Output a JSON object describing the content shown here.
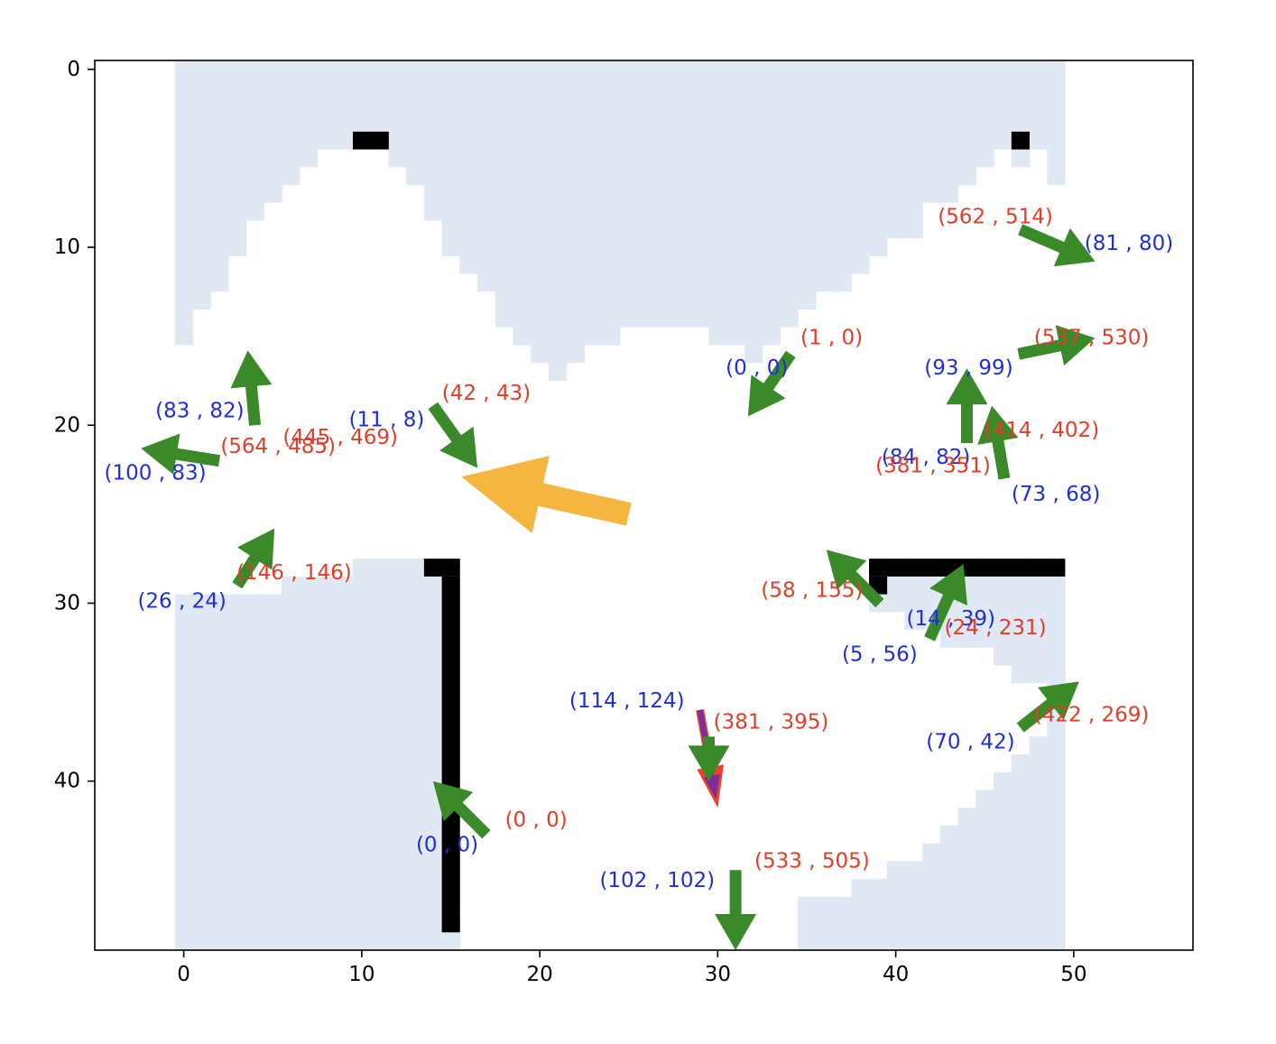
{
  "chart_data": {
    "type": "scatter",
    "title": "",
    "xlabel": "",
    "ylabel": "",
    "xlim": [
      -5,
      56.7
    ],
    "ylim": [
      49.5,
      -0.5
    ],
    "y_axis_inverted": true,
    "x_ticks": [
      0,
      10,
      20,
      30,
      40,
      50
    ],
    "y_ticks": [
      0,
      10,
      20,
      30,
      40
    ],
    "grid": false,
    "legend": "none",
    "colors": {
      "free_region": "#e0e8f4",
      "walls": "#000000",
      "green_arrow": "#3a8a2a",
      "orange_arrow": "#f4b63f",
      "red_arrow": "#e8432a",
      "purple_arrow": "#7b2d9c",
      "blue_label": "#1f2fd6",
      "red_label": "#e23d28"
    },
    "regions": {
      "shaded_columns": [
        {
          "x": 0,
          "from": 0,
          "to": 15
        },
        {
          "x": 1,
          "from": 0,
          "to": 13
        },
        {
          "x": 2,
          "from": 0,
          "to": 12
        },
        {
          "x": 3,
          "from": 0,
          "to": 10
        },
        {
          "x": 4,
          "from": 0,
          "to": 8
        },
        {
          "x": 5,
          "from": 0,
          "to": 7
        },
        {
          "x": 6,
          "from": 0,
          "to": 6
        },
        {
          "x": 7,
          "from": 0,
          "to": 5
        },
        {
          "x": 8,
          "from": 0,
          "to": 4
        },
        {
          "x": 9,
          "from": 0,
          "to": 4
        },
        {
          "x": 10,
          "from": 0,
          "to": 4
        },
        {
          "x": 11,
          "from": 0,
          "to": 4
        },
        {
          "x": 12,
          "from": 0,
          "to": 5
        },
        {
          "x": 13,
          "from": 0,
          "to": 6
        },
        {
          "x": 14,
          "from": 0,
          "to": 8
        },
        {
          "x": 15,
          "from": 0,
          "to": 10
        },
        {
          "x": 16,
          "from": 0,
          "to": 11
        },
        {
          "x": 17,
          "from": 0,
          "to": 12
        },
        {
          "x": 18,
          "from": 0,
          "to": 14
        },
        {
          "x": 19,
          "from": 0,
          "to": 15
        },
        {
          "x": 20,
          "from": 0,
          "to": 16
        },
        {
          "x": 21,
          "from": 0,
          "to": 17
        },
        {
          "x": 22,
          "from": 0,
          "to": 16
        },
        {
          "x": 23,
          "from": 0,
          "to": 15
        },
        {
          "x": 24,
          "from": 0,
          "to": 15
        },
        {
          "x": 25,
          "from": 0,
          "to": 14
        },
        {
          "x": 26,
          "from": 0,
          "to": 14
        },
        {
          "x": 27,
          "from": 0,
          "to": 14
        },
        {
          "x": 28,
          "from": 0,
          "to": 14
        },
        {
          "x": 29,
          "from": 0,
          "to": 14
        },
        {
          "x": 30,
          "from": 0,
          "to": 15
        },
        {
          "x": 31,
          "from": 0,
          "to": 15
        },
        {
          "x": 32,
          "from": 0,
          "to": 16
        },
        {
          "x": 33,
          "from": 0,
          "to": 15
        },
        {
          "x": 34,
          "from": 0,
          "to": 14
        },
        {
          "x": 35,
          "from": 0,
          "to": 13
        },
        {
          "x": 36,
          "from": 0,
          "to": 12
        },
        {
          "x": 37,
          "from": 0,
          "to": 12
        },
        {
          "x": 38,
          "from": 0,
          "to": 11
        },
        {
          "x": 39,
          "from": 0,
          "to": 10
        },
        {
          "x": 40,
          "from": 0,
          "to": 9
        },
        {
          "x": 41,
          "from": 0,
          "to": 9
        },
        {
          "x": 42,
          "from": 0,
          "to": 7
        },
        {
          "x": 43,
          "from": 0,
          "to": 7
        },
        {
          "x": 44,
          "from": 0,
          "to": 6
        },
        {
          "x": 45,
          "from": 0,
          "to": 5
        },
        {
          "x": 46,
          "from": 0,
          "to": 4
        },
        {
          "x": 47,
          "from": 0,
          "to": 5
        },
        {
          "x": 48,
          "from": 0,
          "to": 4
        },
        {
          "x": 49,
          "from": 0,
          "to": 6
        },
        {
          "x": 0,
          "from": 30,
          "to": 49
        },
        {
          "x": 1,
          "from": 30,
          "to": 49
        },
        {
          "x": 2,
          "from": 30,
          "to": 49
        },
        {
          "x": 3,
          "from": 30,
          "to": 49
        },
        {
          "x": 4,
          "from": 30,
          "to": 49
        },
        {
          "x": 5,
          "from": 30,
          "to": 49
        },
        {
          "x": 6,
          "from": 29,
          "to": 49
        },
        {
          "x": 7,
          "from": 29,
          "to": 49
        },
        {
          "x": 8,
          "from": 29,
          "to": 49
        },
        {
          "x": 9,
          "from": 29,
          "to": 49
        },
        {
          "x": 10,
          "from": 28,
          "to": 49
        },
        {
          "x": 11,
          "from": 28,
          "to": 49
        },
        {
          "x": 12,
          "from": 28,
          "to": 49
        },
        {
          "x": 13,
          "from": 28,
          "to": 49
        },
        {
          "x": 14,
          "from": 28,
          "to": 49
        },
        {
          "x": 15,
          "from": 48,
          "to": 49
        },
        {
          "x": 35,
          "from": 47,
          "to": 49
        },
        {
          "x": 36,
          "from": 47,
          "to": 49
        },
        {
          "x": 37,
          "from": 47,
          "to": 49
        },
        {
          "x": 38,
          "from": 46,
          "to": 49
        },
        {
          "x": 39,
          "from": 46,
          "to": 49
        },
        {
          "x": 40,
          "from": 45,
          "to": 49
        },
        {
          "x": 41,
          "from": 45,
          "to": 49
        },
        {
          "x": 42,
          "from": 44,
          "to": 49
        },
        {
          "x": 43,
          "from": 43,
          "to": 49
        },
        {
          "x": 44,
          "from": 42,
          "to": 49
        },
        {
          "x": 45,
          "from": 41,
          "to": 49
        },
        {
          "x": 46,
          "from": 40,
          "to": 49
        },
        {
          "x": 47,
          "from": 39,
          "to": 49
        },
        {
          "x": 48,
          "from": 38,
          "to": 49
        },
        {
          "x": 49,
          "from": 35,
          "to": 49
        },
        {
          "x": 39,
          "from": 29,
          "to": 30
        },
        {
          "x": 40,
          "from": 29,
          "to": 30
        },
        {
          "x": 41,
          "from": 29,
          "to": 31
        },
        {
          "x": 42,
          "from": 29,
          "to": 31
        },
        {
          "x": 43,
          "from": 29,
          "to": 32
        },
        {
          "x": 44,
          "from": 29,
          "to": 32
        },
        {
          "x": 45,
          "from": 29,
          "to": 32
        },
        {
          "x": 46,
          "from": 29,
          "to": 33
        },
        {
          "x": 47,
          "from": 29,
          "to": 34
        },
        {
          "x": 48,
          "from": 29,
          "to": 34
        },
        {
          "x": 49,
          "from": 29,
          "to": 34
        }
      ],
      "wall_cells": [
        {
          "x": 10,
          "y": 4
        },
        {
          "x": 11,
          "y": 4
        },
        {
          "x": 47,
          "y": 4
        },
        {
          "x": 14,
          "y": 28
        },
        {
          "x": 15,
          "y": 28
        },
        {
          "x": 15,
          "from": 29,
          "to": 48
        },
        {
          "x": 39,
          "y": 28
        },
        {
          "x": 40,
          "y": 28
        },
        {
          "x": 41,
          "y": 28
        },
        {
          "x": 42,
          "y": 28
        },
        {
          "x": 43,
          "y": 28
        },
        {
          "x": 44,
          "y": 28
        },
        {
          "x": 45,
          "y": 28
        },
        {
          "x": 46,
          "y": 28
        },
        {
          "x": 47,
          "y": 28
        },
        {
          "x": 48,
          "y": 28
        },
        {
          "x": 49,
          "y": 28
        },
        {
          "x": 39,
          "y": 29
        }
      ]
    },
    "arrows": [
      {
        "x": 4.0,
        "y": 20.0,
        "dx": -0.4,
        "dy": -4.2,
        "color": "green",
        "size": "small"
      },
      {
        "x": 2.0,
        "y": 22.0,
        "dx": -4.4,
        "dy": -0.7,
        "color": "green",
        "size": "small"
      },
      {
        "x": 14.0,
        "y": 18.9,
        "dx": 2.5,
        "dy": 3.5,
        "color": "green",
        "size": "small"
      },
      {
        "x": 3.0,
        "y": 29.0,
        "dx": 2.1,
        "dy": -3.2,
        "color": "green",
        "size": "small"
      },
      {
        "x": 17.0,
        "y": 43.0,
        "dx": -3.0,
        "dy": -3.0,
        "color": "green",
        "size": "small"
      },
      {
        "x": 25.0,
        "y": 25.0,
        "dx": -9.4,
        "dy": -2.1,
        "color": "orange",
        "size": "large"
      },
      {
        "x": 29.0,
        "y": 36.0,
        "dx": 1.0,
        "dy": 5.5,
        "color": "red",
        "size": "medium"
      },
      {
        "x": 29.0,
        "y": 36.0,
        "dx": 0.9,
        "dy": 5.0,
        "color": "purple",
        "size": "thin"
      },
      {
        "x": 29.5,
        "y": 37.5,
        "dx": 0.0,
        "dy": 2.5,
        "color": "green",
        "size": "small"
      },
      {
        "x": 31.0,
        "y": 45.0,
        "dx": 0.0,
        "dy": 4.5,
        "color": "green",
        "size": "small"
      },
      {
        "x": 34.1,
        "y": 16.0,
        "dx": -2.4,
        "dy": 3.5,
        "color": "green",
        "size": "small"
      },
      {
        "x": 39.1,
        "y": 30.0,
        "dx": -3.0,
        "dy": -3.0,
        "color": "green",
        "size": "small"
      },
      {
        "x": 41.9,
        "y": 32.0,
        "dx": 1.9,
        "dy": -4.2,
        "color": "green",
        "size": "small"
      },
      {
        "x": 44.0,
        "y": 21.0,
        "dx": 0.0,
        "dy": -4.2,
        "color": "green",
        "size": "small"
      },
      {
        "x": 46.1,
        "y": 23.0,
        "dx": -0.7,
        "dy": -4.1,
        "color": "green",
        "size": "small"
      },
      {
        "x": 46.9,
        "y": 16.0,
        "dx": 4.3,
        "dy": -0.9,
        "color": "green",
        "size": "small"
      },
      {
        "x": 47.0,
        "y": 9.0,
        "dx": 4.2,
        "dy": 1.8,
        "color": "green",
        "size": "small"
      },
      {
        "x": 47.0,
        "y": 37.0,
        "dx": 3.3,
        "dy": -2.6,
        "color": "green",
        "size": "small"
      }
    ],
    "labels": [
      {
        "text": "(83 , 82)",
        "x": 0.9,
        "y": 19.2,
        "color": "blue"
      },
      {
        "text": "(100 , 83)",
        "x": -1.6,
        "y": 22.7,
        "color": "blue"
      },
      {
        "text": "(564 , 485)",
        "x": 5.3,
        "y": 21.2,
        "color": "red"
      },
      {
        "text": "(445 , 469)",
        "x": 8.8,
        "y": 20.7,
        "color": "red"
      },
      {
        "text": "(11 , 8)",
        "x": 11.4,
        "y": 19.7,
        "color": "blue"
      },
      {
        "text": "(42 , 43)",
        "x": 17.0,
        "y": 18.2,
        "color": "red"
      },
      {
        "text": "(26 , 24)",
        "x": -0.1,
        "y": 29.9,
        "color": "blue"
      },
      {
        "text": "(146 , 146)",
        "x": 6.2,
        "y": 28.3,
        "color": "red"
      },
      {
        "text": "(0 , 0)",
        "x": 14.8,
        "y": 43.6,
        "color": "blue"
      },
      {
        "text": "(0 , 0)",
        "x": 19.8,
        "y": 42.2,
        "color": "red"
      },
      {
        "text": "(114 , 124)",
        "x": 24.9,
        "y": 35.5,
        "color": "blue"
      },
      {
        "text": "(381 , 395)",
        "x": 33.0,
        "y": 36.7,
        "color": "red"
      },
      {
        "text": "(102 , 102)",
        "x": 26.6,
        "y": 45.6,
        "color": "blue"
      },
      {
        "text": "(533 , 505)",
        "x": 35.3,
        "y": 44.5,
        "color": "red"
      },
      {
        "text": "(0 , 0)",
        "x": 32.2,
        "y": 16.8,
        "color": "blue"
      },
      {
        "text": "(1 , 0)",
        "x": 36.4,
        "y": 15.1,
        "color": "red"
      },
      {
        "text": "(58 , 155)",
        "x": 35.3,
        "y": 29.3,
        "color": "red"
      },
      {
        "text": "(14 , 39)",
        "x": 43.1,
        "y": 30.9,
        "color": "blue"
      },
      {
        "text": "(5 , 56)",
        "x": 39.1,
        "y": 32.9,
        "color": "blue"
      },
      {
        "text": "(24 , 231)",
        "x": 45.6,
        "y": 31.4,
        "color": "red"
      },
      {
        "text": "(84 , 82)",
        "x": 41.7,
        "y": 21.8,
        "color": "blue"
      },
      {
        "text": "(381 , 351)",
        "x": 42.1,
        "y": 22.3,
        "color": "red"
      },
      {
        "text": "(93 , 99)",
        "x": 44.1,
        "y": 16.8,
        "color": "blue"
      },
      {
        "text": "(414 , 402)",
        "x": 48.2,
        "y": 20.3,
        "color": "red"
      },
      {
        "text": "(73 , 68)",
        "x": 49.0,
        "y": 23.9,
        "color": "blue"
      },
      {
        "text": "(537 , 530)",
        "x": 51.0,
        "y": 15.1,
        "color": "red"
      },
      {
        "text": "(562 , 514)",
        "x": 45.6,
        "y": 8.3,
        "color": "red"
      },
      {
        "text": "(81 , 80)",
        "x": 53.1,
        "y": 9.8,
        "color": "blue"
      },
      {
        "text": "(70 , 42)",
        "x": 44.2,
        "y": 37.8,
        "color": "blue"
      },
      {
        "text": "(422 , 269)",
        "x": 51.0,
        "y": 36.3,
        "color": "red"
      }
    ]
  }
}
